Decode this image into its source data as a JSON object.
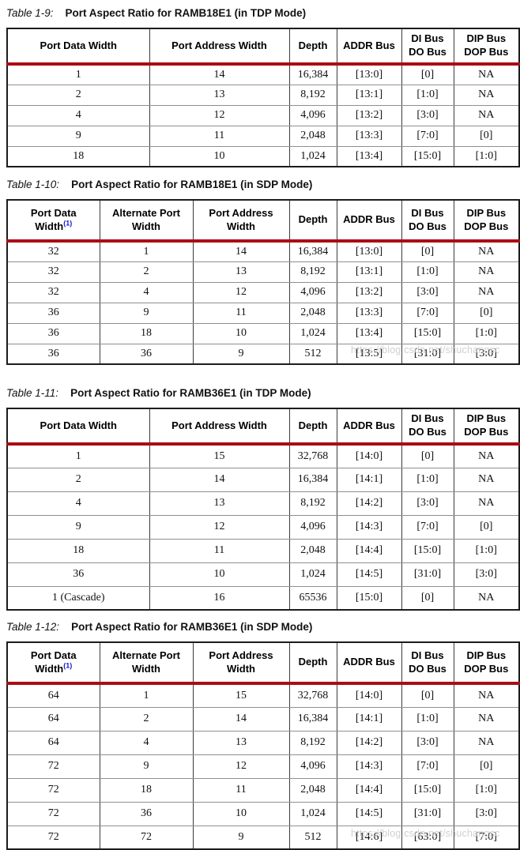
{
  "colors": {
    "header_rule": "#aa0d15",
    "footnote_ref_blue": "#1414d8",
    "watermark_gray": "#c7c7c7"
  },
  "watermark": {
    "text": "https://blog.csdn.net/shuchangsc"
  },
  "tables": [
    {
      "label": "Table 1-9:",
      "title": "Port Aspect Ratio for RAMB18E1 (in TDP Mode)",
      "columns": [
        {
          "lines": [
            "Port Data Width"
          ]
        },
        {
          "lines": [
            "Port Address Width"
          ]
        },
        {
          "lines": [
            "Depth"
          ]
        },
        {
          "lines": [
            "ADDR Bus"
          ]
        },
        {
          "lines": [
            "DI Bus",
            "DO Bus"
          ]
        },
        {
          "lines": [
            "DIP Bus",
            "DOP Bus"
          ]
        }
      ],
      "rows": [
        [
          "1",
          "14",
          "16,384",
          "[13:0]",
          "[0]",
          "NA"
        ],
        [
          "2",
          "13",
          "8,192",
          "[13:1]",
          "[1:0]",
          "NA"
        ],
        [
          "4",
          "12",
          "4,096",
          "[13:2]",
          "[3:0]",
          "NA"
        ],
        [
          "9",
          "11",
          "2,048",
          "[13:3]",
          "[7:0]",
          "[0]"
        ],
        [
          "18",
          "10",
          "1,024",
          "[13:4]",
          "[15:0]",
          "[1:0]"
        ]
      ]
    },
    {
      "label": "Table 1-10:",
      "title": "Port Aspect Ratio for RAMB18E1 (in SDP Mode)",
      "columns": [
        {
          "lines": [
            "Port Data",
            "Width"
          ],
          "sup": "(1)"
        },
        {
          "lines": [
            "Alternate Port",
            "Width"
          ]
        },
        {
          "lines": [
            "Port Address",
            "Width"
          ]
        },
        {
          "lines": [
            "Depth"
          ]
        },
        {
          "lines": [
            "ADDR Bus"
          ]
        },
        {
          "lines": [
            "DI Bus",
            "DO Bus"
          ]
        },
        {
          "lines": [
            "DIP Bus",
            "DOP Bus"
          ]
        }
      ],
      "rows": [
        [
          "32",
          "1",
          "14",
          "16,384",
          "[13:0]",
          "[0]",
          "NA"
        ],
        [
          "32",
          "2",
          "13",
          "8,192",
          "[13:1]",
          "[1:0]",
          "NA"
        ],
        [
          "32",
          "4",
          "12",
          "4,096",
          "[13:2]",
          "[3:0]",
          "NA"
        ],
        [
          "36",
          "9",
          "11",
          "2,048",
          "[13:3]",
          "[7:0]",
          "[0]"
        ],
        [
          "36",
          "18",
          "10",
          "1,024",
          "[13:4]",
          "[15:0]",
          "[1:0]"
        ],
        [
          "36",
          "36",
          "9",
          "512",
          "[13:5]",
          "[31:0]",
          "[3:0]"
        ]
      ]
    },
    {
      "label": "Table 1-11:",
      "title": "Port Aspect Ratio for RAMB36E1 (in TDP Mode)",
      "columns": [
        {
          "lines": [
            "Port Data Width"
          ]
        },
        {
          "lines": [
            "Port Address Width"
          ]
        },
        {
          "lines": [
            "Depth"
          ]
        },
        {
          "lines": [
            "ADDR Bus"
          ]
        },
        {
          "lines": [
            "DI Bus",
            "DO Bus"
          ]
        },
        {
          "lines": [
            "DIP Bus",
            "DOP Bus"
          ]
        }
      ],
      "rows": [
        [
          "1",
          "15",
          "32,768",
          "[14:0]",
          "[0]",
          "NA"
        ],
        [
          "2",
          "14",
          "16,384",
          "[14:1]",
          "[1:0]",
          "NA"
        ],
        [
          "4",
          "13",
          "8,192",
          "[14:2]",
          "[3:0]",
          "NA"
        ],
        [
          "9",
          "12",
          "4,096",
          "[14:3]",
          "[7:0]",
          "[0]"
        ],
        [
          "18",
          "11",
          "2,048",
          "[14:4]",
          "[15:0]",
          "[1:0]"
        ],
        [
          "36",
          "10",
          "1,024",
          "[14:5]",
          "[31:0]",
          "[3:0]"
        ],
        [
          "1 (Cascade)",
          "16",
          "65536",
          "[15:0]",
          "[0]",
          "NA"
        ]
      ]
    },
    {
      "label": "Table 1-12:",
      "title": "Port Aspect Ratio for RAMB36E1 (in SDP Mode)",
      "columns": [
        {
          "lines": [
            "Port Data",
            "Width"
          ],
          "sup": "(1)"
        },
        {
          "lines": [
            "Alternate Port",
            "Width"
          ]
        },
        {
          "lines": [
            "Port Address",
            "Width"
          ]
        },
        {
          "lines": [
            "Depth"
          ]
        },
        {
          "lines": [
            "ADDR Bus"
          ]
        },
        {
          "lines": [
            "DI Bus",
            "DO Bus"
          ]
        },
        {
          "lines": [
            "DIP Bus",
            "DOP Bus"
          ]
        }
      ],
      "rows": [
        [
          "64",
          "1",
          "15",
          "32,768",
          "[14:0]",
          "[0]",
          "NA"
        ],
        [
          "64",
          "2",
          "14",
          "16,384",
          "[14:1]",
          "[1:0]",
          "NA"
        ],
        [
          "64",
          "4",
          "13",
          "8,192",
          "[14:2]",
          "[3:0]",
          "NA"
        ],
        [
          "72",
          "9",
          "12",
          "4,096",
          "[14:3]",
          "[7:0]",
          "[0]"
        ],
        [
          "72",
          "18",
          "11",
          "2,048",
          "[14:4]",
          "[15:0]",
          "[1:0]"
        ],
        [
          "72",
          "36",
          "10",
          "1,024",
          "[14:5]",
          "[31:0]",
          "[3:0]"
        ],
        [
          "72",
          "72",
          "9",
          "512",
          "[14:6]",
          "[63:0]",
          "[7:0]"
        ]
      ]
    }
  ]
}
